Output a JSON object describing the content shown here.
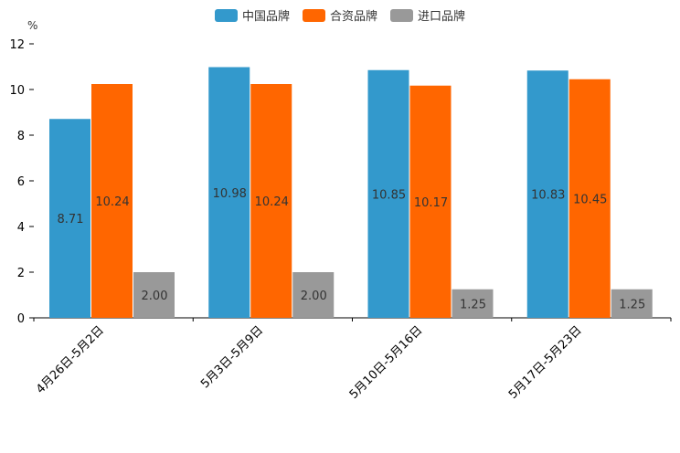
{
  "chart_data": {
    "type": "bar",
    "unit": "%",
    "categories": [
      "4月26日-5月2日",
      "5月3日-5月9日",
      "5月10日-5月16日",
      "5月17日-5月23日"
    ],
    "series": [
      {
        "name": "中国品牌",
        "color": "#3399cc",
        "values": [
          8.71,
          10.98,
          10.85,
          10.83
        ]
      },
      {
        "name": "合资品牌",
        "color": "#ff6600",
        "values": [
          10.24,
          10.24,
          10.17,
          10.45
        ]
      },
      {
        "name": "进口品牌",
        "color": "#999999",
        "values": [
          2.0,
          2.0,
          1.25,
          1.25
        ]
      }
    ],
    "yticks": [
      0,
      2,
      4,
      6,
      8,
      10,
      12
    ],
    "ylim": [
      0,
      12
    ],
    "xlabel": "",
    "ylabel": "%",
    "legend_position": "top-center",
    "grid": false
  }
}
